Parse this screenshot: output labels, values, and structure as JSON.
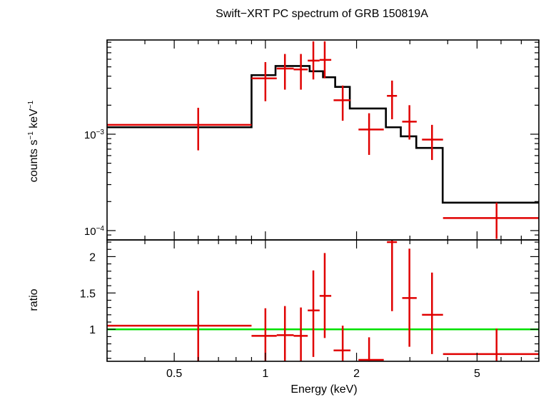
{
  "chart_data": [
    {
      "type": "scatter",
      "title": "Swift−XRT PC spectrum of GRB 150819A",
      "ylabel_base": "counts s",
      "ylabel_exp1": "−1",
      "ylabel_mid": " keV",
      "ylabel_exp2": "−1",
      "xscale": "log",
      "yscale": "log",
      "xlim": [
        0.3,
        8.0
      ],
      "ylim": [
        8e-05,
        0.0095
      ],
      "y_tick_labels": [
        {
          "value": 0.001,
          "base": "10",
          "exp": "−3"
        },
        {
          "value": 0.0001,
          "base": "10",
          "exp": "−4"
        }
      ],
      "data_color": "#e00000",
      "model_color": "#000000",
      "data": [
        {
          "x": 0.6,
          "xlo": 0.3,
          "xhi": 0.9,
          "y": 0.00125,
          "ylo": 0.00068,
          "yhi": 0.00188
        },
        {
          "x": 1.0,
          "xlo": 0.9,
          "xhi": 1.09,
          "y": 0.0038,
          "ylo": 0.0022,
          "yhi": 0.0056
        },
        {
          "x": 1.16,
          "xlo": 1.09,
          "xhi": 1.24,
          "y": 0.0048,
          "ylo": 0.0029,
          "yhi": 0.0068
        },
        {
          "x": 1.31,
          "xlo": 1.24,
          "xhi": 1.38,
          "y": 0.0047,
          "ylo": 0.0029,
          "yhi": 0.0068
        },
        {
          "x": 1.44,
          "xlo": 1.38,
          "xhi": 1.51,
          "y": 0.0058,
          "ylo": 0.0037,
          "yhi": 0.0092
        },
        {
          "x": 1.57,
          "xlo": 1.51,
          "xhi": 1.65,
          "y": 0.0059,
          "ylo": 0.0038,
          "yhi": 0.0092
        },
        {
          "x": 1.8,
          "xlo": 1.68,
          "xhi": 1.91,
          "y": 0.00225,
          "ylo": 0.00138,
          "yhi": 0.0032
        },
        {
          "x": 2.2,
          "xlo": 2.03,
          "xhi": 2.46,
          "y": 0.00112,
          "ylo": 0.00061,
          "yhi": 0.00165
        },
        {
          "x": 2.62,
          "xlo": 2.52,
          "xhi": 2.72,
          "y": 0.0025,
          "ylo": 0.00143,
          "yhi": 0.0036
        },
        {
          "x": 2.99,
          "xlo": 2.83,
          "xhi": 3.16,
          "y": 0.00135,
          "ylo": 0.00088,
          "yhi": 0.002
        },
        {
          "x": 3.55,
          "xlo": 3.29,
          "xhi": 3.86,
          "y": 0.00088,
          "ylo": 0.00054,
          "yhi": 0.00125
        },
        {
          "x": 5.8,
          "xlo": 3.86,
          "xhi": 8.0,
          "y": 0.000135,
          "ylo": 8.2e-05,
          "yhi": 0.000195
        }
      ],
      "model_steps": [
        {
          "x0": 0.3,
          "x1": 0.9,
          "y": 0.00118
        },
        {
          "x0": 0.9,
          "x1": 1.08,
          "y": 0.0041
        },
        {
          "x0": 1.08,
          "x1": 1.4,
          "y": 0.0051
        },
        {
          "x0": 1.4,
          "x1": 1.55,
          "y": 0.0045
        },
        {
          "x0": 1.55,
          "x1": 1.7,
          "y": 0.0039
        },
        {
          "x0": 1.7,
          "x1": 1.9,
          "y": 0.0031
        },
        {
          "x0": 1.9,
          "x1": 2.5,
          "y": 0.00185
        },
        {
          "x0": 2.5,
          "x1": 2.8,
          "y": 0.00118
        },
        {
          "x0": 2.8,
          "x1": 3.15,
          "y": 0.00095
        },
        {
          "x0": 3.15,
          "x1": 3.85,
          "y": 0.00072
        },
        {
          "x0": 3.85,
          "x1": 8.0,
          "y": 0.000195
        }
      ]
    },
    {
      "type": "scatter",
      "xlabel": "Energy (keV)",
      "ylabel": "ratio",
      "xscale": "log",
      "xlim": [
        0.3,
        8.0
      ],
      "ylim": [
        0.56,
        2.23
      ],
      "x_tick_labels": [
        {
          "value": 0.5,
          "label": "0.5"
        },
        {
          "value": 1,
          "label": "1"
        },
        {
          "value": 2,
          "label": "2"
        },
        {
          "value": 5,
          "label": "5"
        }
      ],
      "y_tick_labels": [
        {
          "value": 1,
          "label": "1"
        },
        {
          "value": 1.5,
          "label": "1.5"
        },
        {
          "value": 2,
          "label": "2"
        }
      ],
      "reference_line": 1,
      "reference_color": "#00e000",
      "data": [
        {
          "x": 0.6,
          "xlo": 0.3,
          "xhi": 0.9,
          "y": 1.05,
          "ylo": 0.56,
          "yhi": 1.53
        },
        {
          "x": 1.0,
          "xlo": 0.9,
          "xhi": 1.09,
          "y": 0.91,
          "ylo": 0.56,
          "yhi": 1.29
        },
        {
          "x": 1.16,
          "xlo": 1.09,
          "xhi": 1.24,
          "y": 0.92,
          "ylo": 0.56,
          "yhi": 1.32
        },
        {
          "x": 1.31,
          "xlo": 1.24,
          "xhi": 1.38,
          "y": 0.91,
          "ylo": 0.56,
          "yhi": 1.3
        },
        {
          "x": 1.44,
          "xlo": 1.38,
          "xhi": 1.51,
          "y": 1.26,
          "ylo": 0.62,
          "yhi": 1.81
        },
        {
          "x": 1.57,
          "xlo": 1.51,
          "xhi": 1.65,
          "y": 1.46,
          "ylo": 0.88,
          "yhi": 2.05
        },
        {
          "x": 1.8,
          "xlo": 1.68,
          "xhi": 1.91,
          "y": 0.71,
          "ylo": 0.56,
          "yhi": 1.05
        },
        {
          "x": 2.2,
          "xlo": 2.03,
          "xhi": 2.46,
          "y": 0.58,
          "ylo": 0.56,
          "yhi": 0.89
        },
        {
          "x": 2.62,
          "xlo": 2.52,
          "xhi": 2.72,
          "y": 2.2,
          "ylo": 1.25,
          "yhi": 2.23
        },
        {
          "x": 2.99,
          "xlo": 2.83,
          "xhi": 3.16,
          "y": 1.43,
          "ylo": 0.76,
          "yhi": 2.11
        },
        {
          "x": 3.55,
          "xlo": 3.29,
          "xhi": 3.86,
          "y": 1.2,
          "ylo": 0.66,
          "yhi": 1.78
        },
        {
          "x": 5.8,
          "xlo": 3.86,
          "xhi": 8.0,
          "y": 0.66,
          "ylo": 0.56,
          "yhi": 1.01
        }
      ]
    }
  ]
}
